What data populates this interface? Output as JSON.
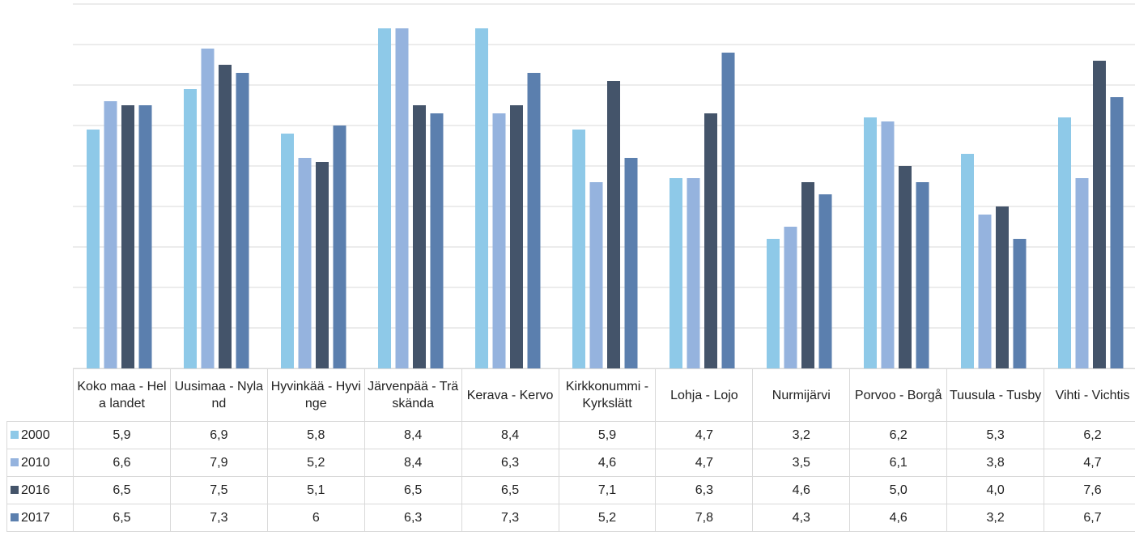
{
  "chart_data": {
    "type": "bar",
    "categories": [
      "Koko maa - Hela landet",
      "Uusimaa - Nyland",
      "Hyvinkää - Hyvinge",
      "Järvenpää - Träskända",
      "Kerava - Kervo",
      "Kirkkonummi - Kyrkslätt",
      "Lohja - Lojo",
      "Nurmijärvi",
      "Porvoo - Borgå",
      "Tuusula - Tusby",
      "Vihti - Vichtis"
    ],
    "series": [
      {
        "name": "2000",
        "color": "#8ec9e8",
        "values": [
          5.9,
          6.9,
          5.8,
          8.4,
          8.4,
          5.9,
          4.7,
          3.2,
          6.2,
          5.3,
          6.2
        ],
        "value_labels": [
          "5,9",
          "6,9",
          "5,8",
          "8,4",
          "8,4",
          "5,9",
          "4,7",
          "3,2",
          "6,2",
          "5,3",
          "6,2"
        ]
      },
      {
        "name": "2010",
        "color": "#95b3de",
        "values": [
          6.6,
          7.9,
          5.2,
          8.4,
          6.3,
          4.6,
          4.7,
          3.5,
          6.1,
          3.8,
          4.7
        ],
        "value_labels": [
          "6,6",
          "7,9",
          "5,2",
          "8,4",
          "6,3",
          "4,6",
          "4,7",
          "3,5",
          "6,1",
          "3,8",
          "4,7"
        ]
      },
      {
        "name": "2016",
        "color": "#44546a",
        "values": [
          6.5,
          7.5,
          5.1,
          6.5,
          6.5,
          7.1,
          6.3,
          4.6,
          5.0,
          4.0,
          7.6
        ],
        "value_labels": [
          "6,5",
          "7,5",
          "5,1",
          "6,5",
          "6,5",
          "7,1",
          "6,3",
          "4,6",
          "5,0",
          "4,0",
          "7,6"
        ]
      },
      {
        "name": "2017",
        "color": "#5b7fae",
        "values": [
          6.5,
          7.3,
          6,
          6.3,
          7.3,
          5.2,
          7.8,
          4.3,
          4.6,
          3.2,
          6.7
        ],
        "value_labels": [
          "6,5",
          "7,3",
          "6",
          "6,3",
          "7,3",
          "5,2",
          "7,8",
          "4,3",
          "4,6",
          "3,2",
          "6,7"
        ]
      }
    ],
    "ylim": [
      0,
      9
    ],
    "yticks": [
      0,
      1,
      2,
      3,
      4,
      5,
      6,
      7,
      8,
      9
    ],
    "grid": true
  }
}
